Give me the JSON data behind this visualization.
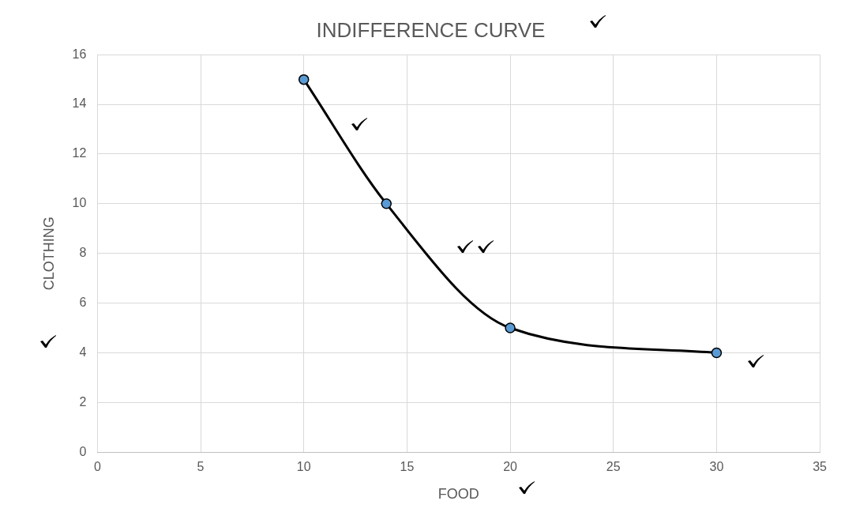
{
  "chart_data": {
    "type": "line",
    "title": "INDIFFERENCE CURVE",
    "xlabel": "FOOD",
    "ylabel": "CLOTHING",
    "x": [
      10,
      14,
      20,
      30
    ],
    "series": [
      {
        "color": "#000000",
        "values": [
          15,
          10,
          5,
          4
        ]
      }
    ],
    "xlim": [
      0,
      35
    ],
    "xticks": [
      0,
      5,
      10,
      15,
      20,
      25,
      30,
      35
    ],
    "ylim": [
      0,
      16
    ],
    "yticks": [
      0,
      2,
      4,
      6,
      8,
      10,
      12,
      14,
      16
    ],
    "grid": true,
    "legend": false,
    "marker": "circle",
    "line_style": "solid"
  }
}
